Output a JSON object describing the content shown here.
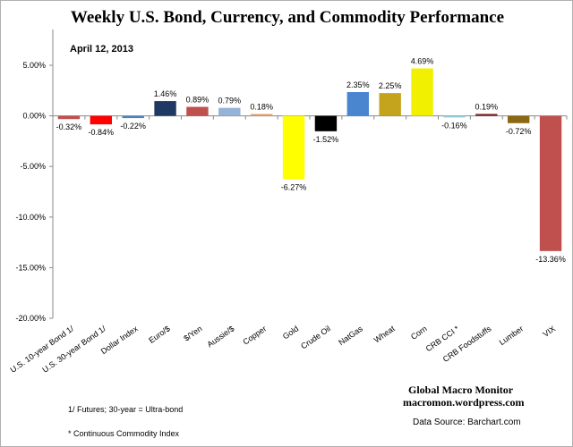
{
  "chart_data": {
    "type": "bar",
    "title": "Weekly U.S. Bond, Currency, and Commodity Performance",
    "subtitle": "April 12, 2013",
    "categories": [
      "U.S. 10-year Bond 1/",
      "U.S. 30-year Bond 1/",
      "Dollar Index",
      "Euro/$",
      "$/Yen",
      "Aussie/$",
      "Copper",
      "Gold",
      "Crude Oil",
      "NatGas",
      "Wheat",
      "Corn",
      "CRB CCI *",
      "CRB Foodstuffs",
      "Lumber",
      "VIX"
    ],
    "values": [
      -0.32,
      -0.84,
      -0.22,
      1.46,
      0.89,
      0.79,
      0.18,
      -6.27,
      -1.52,
      2.35,
      2.25,
      4.69,
      -0.16,
      0.19,
      -0.72,
      -13.36
    ],
    "data_labels": [
      "-0.32%",
      "-0.84%",
      "-0.22%",
      "1.46%",
      "0.89%",
      "0.79%",
      "0.18%",
      "-6.27%",
      "-1.52%",
      "2.35%",
      "2.25%",
      "4.69%",
      "-0.16%",
      "0.19%",
      "-0.72%",
      "-13.36%"
    ],
    "colors": [
      "#c0504d",
      "#ff0000",
      "#4f81bd",
      "#1f3864",
      "#c0504d",
      "#95b3d7",
      "#e6a06a",
      "#ffff00",
      "#000000",
      "#4a86d0",
      "#c4a41c",
      "#f0f000",
      "#93cddd",
      "#7f1f1f",
      "#8b6914",
      "#c0504d"
    ],
    "yticks": [
      "5.00%",
      "0.00%",
      "-5.00%",
      "-10.00%",
      "-15.00%",
      "-20.00%"
    ],
    "ytick_values": [
      5,
      0,
      -5,
      -10,
      -15,
      -20
    ],
    "ylim": [
      -20,
      5
    ],
    "grid": false,
    "legend": "none"
  },
  "notes": {
    "footnote1": "1/  Futures; 30-year = Ultra-bond",
    "footnote2": "* Continuous Commodity Index"
  },
  "brand": {
    "name": "Global Macro Monitor",
    "site": "macromon.wordpress.com",
    "source": "Data Source:  Barchart.com"
  }
}
